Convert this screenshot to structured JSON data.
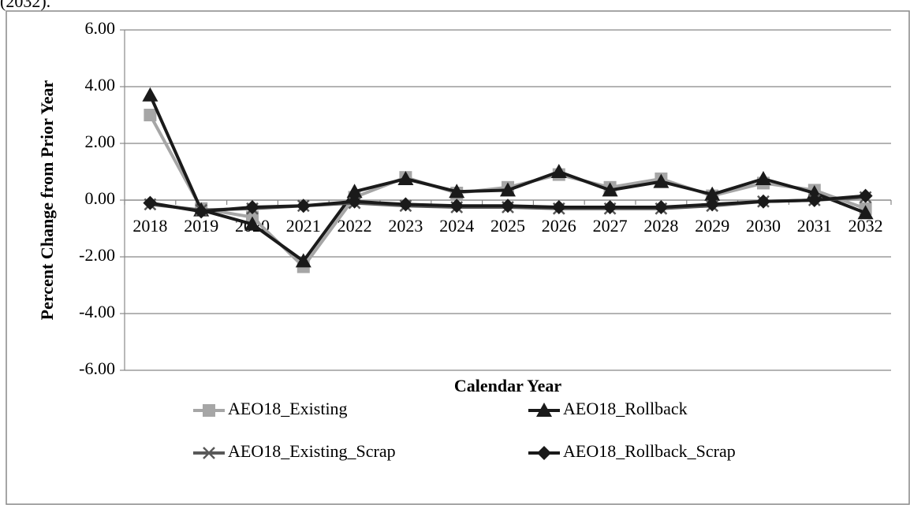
{
  "header_fragment": "(2032).",
  "chart_data": {
    "type": "line",
    "y_axis_label": "Percent Change from Prior Year",
    "x_axis_label": "Calendar Year",
    "categories": [
      "2018",
      "2019",
      "2020",
      "2021",
      "2022",
      "2023",
      "2024",
      "2025",
      "2026",
      "2027",
      "2028",
      "2029",
      "2030",
      "2031",
      "2032"
    ],
    "series": [
      {
        "name": "AEO18_Existing",
        "color": "#a6a6a6",
        "marker": "square",
        "values": [
          3.0,
          -0.3,
          -0.6,
          -2.35,
          0.1,
          0.8,
          0.25,
          0.45,
          0.9,
          0.45,
          0.75,
          0.15,
          0.6,
          0.35,
          -0.3
        ]
      },
      {
        "name": "AEO18_Rollback",
        "color": "#1a1a1a",
        "marker": "triangle",
        "values": [
          3.7,
          -0.35,
          -0.85,
          -2.15,
          0.3,
          0.75,
          0.3,
          0.35,
          1.0,
          0.35,
          0.65,
          0.2,
          0.75,
          0.25,
          -0.45
        ]
      },
      {
        "name": "AEO18_Existing_Scrap",
        "color": "#595959",
        "marker": "x",
        "values": [
          -0.15,
          -0.35,
          -0.3,
          -0.2,
          -0.1,
          -0.2,
          -0.25,
          -0.25,
          -0.3,
          -0.3,
          -0.3,
          -0.2,
          -0.05,
          0.0,
          0.1
        ]
      },
      {
        "name": "AEO18_Rollback_Scrap",
        "color": "#1a1a1a",
        "marker": "diamond",
        "values": [
          -0.1,
          -0.4,
          -0.25,
          -0.2,
          -0.05,
          -0.15,
          -0.2,
          -0.2,
          -0.25,
          -0.25,
          -0.25,
          -0.15,
          -0.05,
          0.0,
          0.15
        ]
      }
    ],
    "ylim": [
      -6,
      6
    ],
    "yticks": [
      {
        "value": -6,
        "label": "-6.00"
      },
      {
        "value": -4,
        "label": "-4.00"
      },
      {
        "value": -2,
        "label": "-2.00"
      },
      {
        "value": 0,
        "label": "0.00"
      },
      {
        "value": 2,
        "label": "2.00"
      },
      {
        "value": 4,
        "label": "4.00"
      },
      {
        "value": 6,
        "label": "6.00"
      }
    ],
    "grid": true
  }
}
